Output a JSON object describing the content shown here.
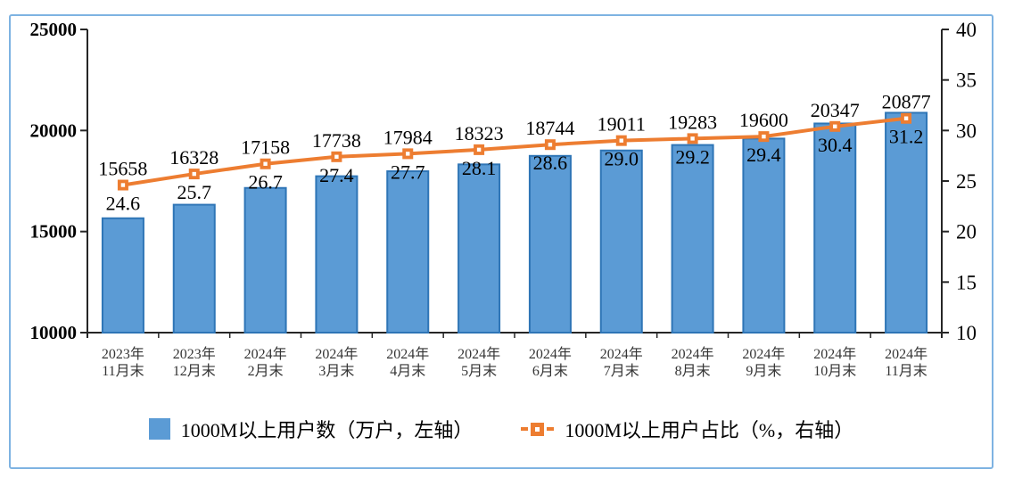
{
  "frame": {
    "border_color": "#7eb3e2"
  },
  "chart_data": {
    "type": "combo",
    "title": "",
    "categories": [
      [
        "2023年",
        "11月末"
      ],
      [
        "2023年",
        "12月末"
      ],
      [
        "2024年",
        "2月末"
      ],
      [
        "2024年",
        "3月末"
      ],
      [
        "2024年",
        "4月末"
      ],
      [
        "2024年",
        "5月末"
      ],
      [
        "2024年",
        "6月末"
      ],
      [
        "2024年",
        "7月末"
      ],
      [
        "2024年",
        "8月末"
      ],
      [
        "2024年",
        "9月末"
      ],
      [
        "2024年",
        "10月末"
      ],
      [
        "2024年",
        "11月末"
      ]
    ],
    "series": [
      {
        "name": "1000M以上用户数（万户，左轴）",
        "type": "bar",
        "axis": "left",
        "values": [
          15658,
          16328,
          17158,
          17738,
          17984,
          18323,
          18744,
          19011,
          19283,
          19600,
          20347,
          20877
        ],
        "labels": [
          "15658",
          "16328",
          "17158",
          "17738",
          "17984",
          "18323",
          "18744",
          "19011",
          "19283",
          "19600",
          "20347",
          "20877"
        ],
        "color": "#5b9bd5",
        "border_color": "#2e75b6"
      },
      {
        "name": "1000M以上用户占比（%，右轴）",
        "type": "line",
        "axis": "right",
        "values": [
          24.6,
          25.7,
          26.7,
          27.4,
          27.7,
          28.1,
          28.6,
          29.0,
          29.2,
          29.4,
          30.4,
          31.2
        ],
        "labels": [
          "24.6",
          "25.7",
          "26.7",
          "27.4",
          "27.7",
          "28.1",
          "28.6",
          "29.0",
          "29.2",
          "29.4",
          "30.4",
          "31.2"
        ],
        "color": "#ed7d31",
        "marker": "square-with-white-center"
      }
    ],
    "left_axis": {
      "min": 10000,
      "max": 25000,
      "step": 5000,
      "ticks": [
        "25000",
        "20000",
        "15000",
        "10000"
      ]
    },
    "right_axis": {
      "min": 10,
      "max": 40,
      "step": 5,
      "ticks": [
        "40",
        "35",
        "30",
        "25",
        "20",
        "15",
        "10"
      ]
    },
    "grid": false,
    "legend_position": "bottom",
    "axis_color": "#262626"
  }
}
